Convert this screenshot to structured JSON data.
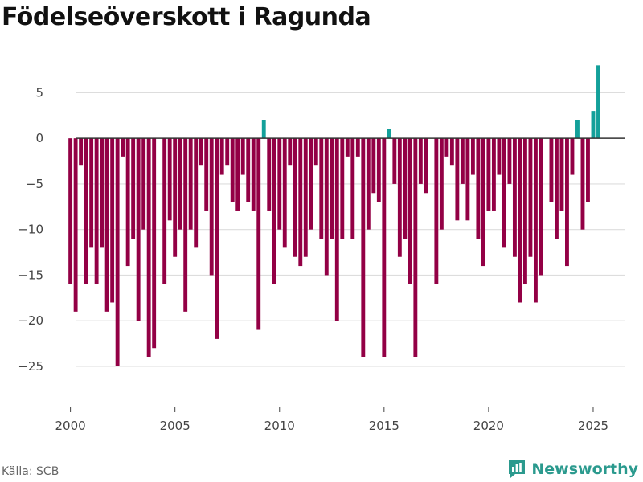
{
  "chart_data": {
    "type": "bar",
    "title": "Födelseöverskott i Ragunda",
    "xlabel": "",
    "ylabel": "",
    "ylim": [
      -28,
      9
    ],
    "xlim": [
      1999.4,
      2027.0
    ],
    "yticks": [
      5,
      0,
      -5,
      -10,
      -15,
      -20,
      -25
    ],
    "xticks": [
      2000,
      2005,
      2010,
      2015,
      2020,
      2025
    ],
    "grid": true,
    "legend": "none",
    "colors": {
      "negative": "#930045",
      "positive": "#13a09a",
      "zero_line": "#333333",
      "grid": "#dddddd"
    },
    "series": [
      {
        "name": "Födelseöverskott",
        "values": [
          -16,
          -19,
          -3,
          -16,
          -12,
          -16,
          -12,
          -19,
          -18,
          -25,
          -2,
          -14,
          -11,
          -20,
          -10,
          -24,
          -23,
          0,
          -16,
          -9,
          -13,
          -10,
          -19,
          -10,
          -12,
          -3,
          -8,
          -15,
          -22,
          -4,
          -3,
          -7,
          -8,
          -4,
          -7,
          -8,
          -21,
          2,
          -8,
          -16,
          -10,
          -12,
          -3,
          -13,
          -14,
          -13,
          -10,
          -3,
          -11,
          -15,
          -11,
          -20,
          -11,
          -2,
          -11,
          -2,
          -24,
          -10,
          -6,
          -7,
          -24,
          1,
          -5,
          -13,
          -11,
          -16,
          -24,
          -5,
          -6,
          0,
          -16,
          -10,
          -2,
          -3,
          -9,
          -5,
          -9,
          -4,
          -11,
          -14,
          -8,
          -8,
          -4,
          -12,
          -5,
          -13,
          -18,
          -16,
          -13,
          -18,
          -15,
          0,
          -7,
          -11,
          -8,
          -14,
          -4,
          2,
          -10,
          -7,
          3,
          8
        ]
      }
    ],
    "period_start": 2000.0,
    "period_step": 0.25
  },
  "footer": {
    "source": "Källa: SCB",
    "brand": "Newsworthy"
  }
}
